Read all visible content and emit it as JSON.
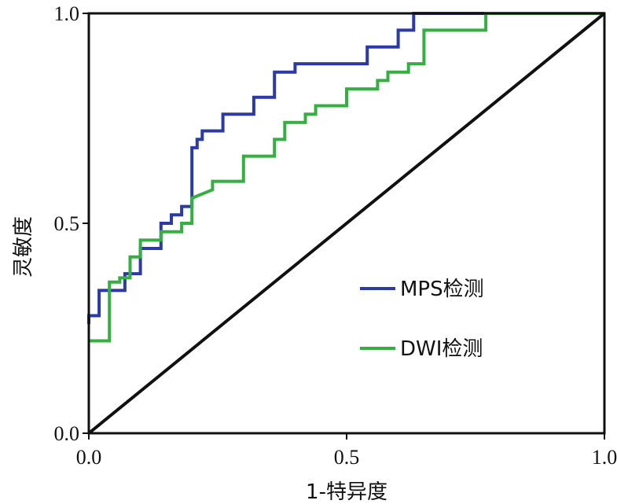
{
  "chart_data": {
    "type": "line",
    "xlabel": "1-特异度",
    "ylabel": "灵敏度",
    "xlim": [
      0,
      1
    ],
    "ylim": [
      0,
      1
    ],
    "x_ticks": [
      {
        "value": 0,
        "label": "0.0"
      },
      {
        "value": 0.5,
        "label": "0.5"
      },
      {
        "value": 1,
        "label": "1.0"
      }
    ],
    "y_ticks": [
      {
        "value": 0,
        "label": "0.0"
      },
      {
        "value": 0.5,
        "label": "0.5"
      },
      {
        "value": 1,
        "label": "1.0"
      }
    ],
    "legend_position": "center-right",
    "series": [
      {
        "name": "MPS检测",
        "color": "#2b3aa8",
        "step": true,
        "points": [
          [
            0,
            0.26
          ],
          [
            0,
            0.28
          ],
          [
            0.02,
            0.28
          ],
          [
            0.02,
            0.34
          ],
          [
            0.07,
            0.34
          ],
          [
            0.07,
            0.38
          ],
          [
            0.1,
            0.38
          ],
          [
            0.1,
            0.44
          ],
          [
            0.14,
            0.44
          ],
          [
            0.14,
            0.46
          ],
          [
            0.14,
            0.5
          ],
          [
            0.16,
            0.5
          ],
          [
            0.16,
            0.52
          ],
          [
            0.18,
            0.52
          ],
          [
            0.18,
            0.54
          ],
          [
            0.2,
            0.54
          ],
          [
            0.2,
            0.68
          ],
          [
            0.21,
            0.68
          ],
          [
            0.21,
            0.7
          ],
          [
            0.22,
            0.7
          ],
          [
            0.22,
            0.72
          ],
          [
            0.26,
            0.72
          ],
          [
            0.26,
            0.76
          ],
          [
            0.32,
            0.76
          ],
          [
            0.32,
            0.8
          ],
          [
            0.36,
            0.8
          ],
          [
            0.36,
            0.86
          ],
          [
            0.4,
            0.86
          ],
          [
            0.4,
            0.88
          ],
          [
            0.54,
            0.88
          ],
          [
            0.54,
            0.92
          ],
          [
            0.6,
            0.92
          ],
          [
            0.6,
            0.96
          ],
          [
            0.63,
            0.96
          ],
          [
            0.63,
            1.0
          ],
          [
            1.0,
            1.0
          ]
        ]
      },
      {
        "name": "DWI检测",
        "color": "#33b040",
        "step": true,
        "points": [
          [
            0,
            0.22
          ],
          [
            0.04,
            0.22
          ],
          [
            0.04,
            0.36
          ],
          [
            0.06,
            0.36
          ],
          [
            0.06,
            0.37
          ],
          [
            0.08,
            0.37
          ],
          [
            0.08,
            0.42
          ],
          [
            0.1,
            0.42
          ],
          [
            0.1,
            0.46
          ],
          [
            0.14,
            0.46
          ],
          [
            0.14,
            0.48
          ],
          [
            0.18,
            0.48
          ],
          [
            0.18,
            0.5
          ],
          [
            0.2,
            0.5
          ],
          [
            0.2,
            0.56
          ],
          [
            0.24,
            0.58
          ],
          [
            0.24,
            0.6
          ],
          [
            0.3,
            0.6
          ],
          [
            0.3,
            0.66
          ],
          [
            0.36,
            0.66
          ],
          [
            0.36,
            0.7
          ],
          [
            0.38,
            0.7
          ],
          [
            0.38,
            0.74
          ],
          [
            0.42,
            0.74
          ],
          [
            0.42,
            0.76
          ],
          [
            0.44,
            0.76
          ],
          [
            0.44,
            0.78
          ],
          [
            0.5,
            0.78
          ],
          [
            0.5,
            0.82
          ],
          [
            0.56,
            0.82
          ],
          [
            0.56,
            0.84
          ],
          [
            0.58,
            0.84
          ],
          [
            0.58,
            0.86
          ],
          [
            0.62,
            0.86
          ],
          [
            0.62,
            0.88
          ],
          [
            0.65,
            0.88
          ],
          [
            0.65,
            0.96
          ],
          [
            0.77,
            0.96
          ],
          [
            0.77,
            1.0
          ],
          [
            1.0,
            1.0
          ]
        ]
      },
      {
        "name": "",
        "color": "#111111",
        "step": false,
        "points": [
          [
            0,
            0
          ],
          [
            1,
            1
          ]
        ]
      }
    ]
  }
}
